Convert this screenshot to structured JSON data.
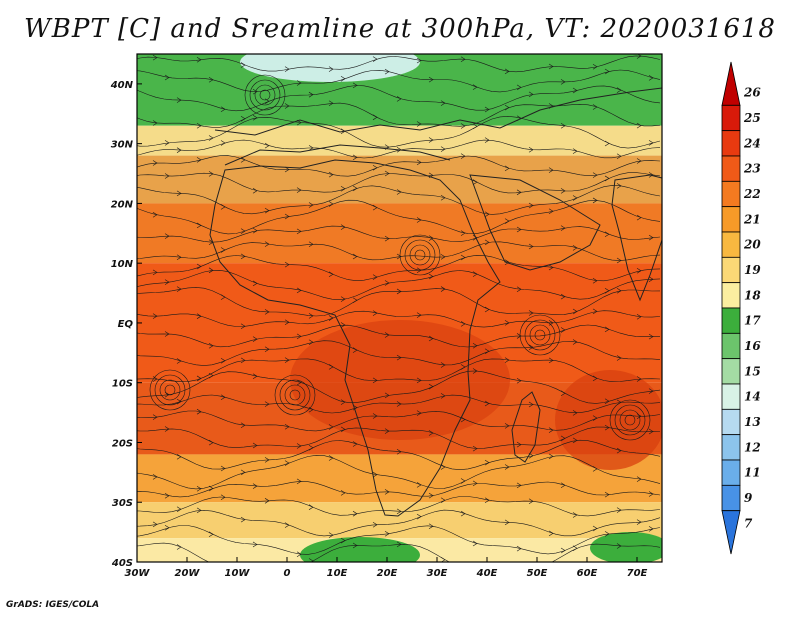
{
  "figure": {
    "title": "WBPT [C] and Sreamline at 300hPa, VT: 2020031618",
    "credit": "GrADS: IGES/COLA",
    "variable": "Wet-bulb potential temperature",
    "units": "C",
    "level": "300hPa",
    "valid_time": "2020031618"
  },
  "map": {
    "lon_range": [
      -30,
      75
    ],
    "lat_range": [
      -40,
      45
    ],
    "lon_ticks": [
      {
        "value": -30,
        "label": "30W"
      },
      {
        "value": -20,
        "label": "20W"
      },
      {
        "value": -10,
        "label": "10W"
      },
      {
        "value": 0,
        "label": "0"
      },
      {
        "value": 10,
        "label": "10E"
      },
      {
        "value": 20,
        "label": "20E"
      },
      {
        "value": 30,
        "label": "30E"
      },
      {
        "value": 40,
        "label": "40E"
      },
      {
        "value": 50,
        "label": "50E"
      },
      {
        "value": 60,
        "label": "60E"
      },
      {
        "value": 70,
        "label": "70E"
      }
    ],
    "lat_ticks": [
      {
        "value": 40,
        "label": "40N"
      },
      {
        "value": 30,
        "label": "30N"
      },
      {
        "value": 20,
        "label": "20N"
      },
      {
        "value": 10,
        "label": "10N"
      },
      {
        "value": 0,
        "label": "EQ"
      },
      {
        "value": -10,
        "label": "10S"
      },
      {
        "value": -20,
        "label": "20S"
      },
      {
        "value": -30,
        "label": "30S"
      },
      {
        "value": -40,
        "label": "40S"
      }
    ],
    "bands": [
      {
        "lat_top": 45,
        "lat_bottom": 33,
        "color": "#4ab54a"
      },
      {
        "lat_top": 33,
        "lat_bottom": 28,
        "color": "#f5dc8a"
      },
      {
        "lat_top": 28,
        "lat_bottom": 20,
        "color": "#e8a24a"
      },
      {
        "lat_top": 20,
        "lat_bottom": 10,
        "color": "#f07a25"
      },
      {
        "lat_top": 10,
        "lat_bottom": -10,
        "color": "#f05a18"
      },
      {
        "lat_top": -10,
        "lat_bottom": -22,
        "color": "#e85a1a"
      },
      {
        "lat_top": -22,
        "lat_bottom": -30,
        "color": "#f5a33a"
      },
      {
        "lat_top": -30,
        "lat_bottom": -36,
        "color": "#f7cf70"
      },
      {
        "lat_top": -36,
        "lat_bottom": -40,
        "color": "#fbe9a4"
      }
    ]
  },
  "colorbar": {
    "levels": [
      "26",
      "25",
      "24",
      "23",
      "22",
      "21",
      "20",
      "19",
      "18",
      "17",
      "16",
      "15",
      "14",
      "13",
      "12",
      "11",
      "9",
      "7"
    ],
    "colors": [
      "#c00000",
      "#d81a0a",
      "#e83a10",
      "#f05a18",
      "#f47a20",
      "#f79a28",
      "#f8b840",
      "#fbd876",
      "#fbeea0",
      "#3cae3c",
      "#6cc46c",
      "#a4dca4",
      "#d8f2e6",
      "#b6daf0",
      "#8cc4ec",
      "#6aaeea",
      "#4892e6",
      "#2a74dc"
    ]
  }
}
